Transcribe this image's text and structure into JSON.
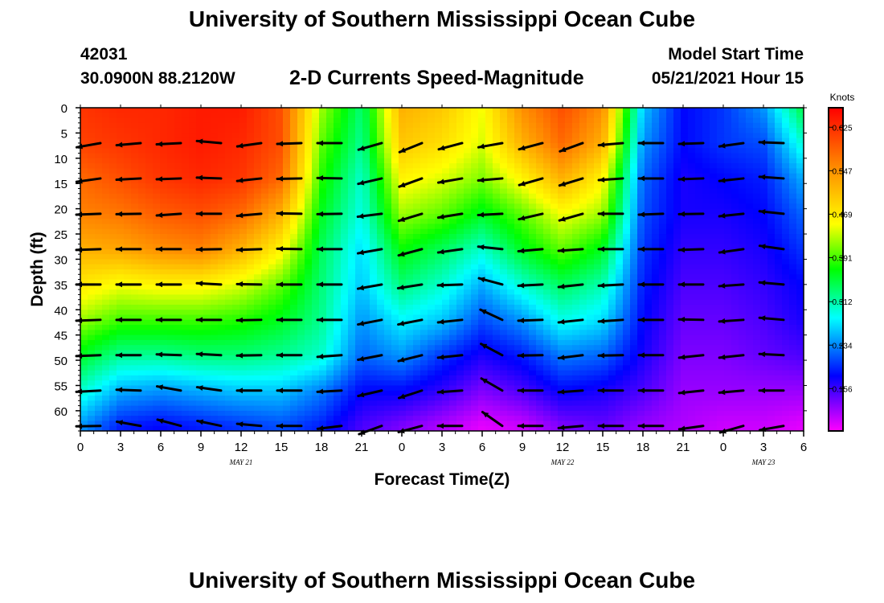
{
  "header": {
    "title": "University of Southern Mississippi Ocean Cube",
    "station_id": "42031",
    "station_coords": "30.0900N  88.2120W",
    "plot_title": "2-D Currents Speed-Magnitude",
    "model_label": "Model Start Time",
    "model_time": "05/21/2021 Hour 15"
  },
  "footer": {
    "title": "University of Southern Mississippi Ocean Cube"
  },
  "colors": {
    "magenta": "#ff00ff",
    "blue": "#0000ff",
    "cyan": "#00ffff",
    "green": "#00ff00",
    "yellow": "#ffff00",
    "orange": "#ff8800",
    "red": "#ff0000"
  },
  "chart_data": {
    "type": "heatmap",
    "title": "2-D Currents Speed-Magnitude",
    "xlabel": "Forecast Time(Z)",
    "ylabel": "Depth (ft)",
    "xlim": [
      0,
      54
    ],
    "ylim": [
      64,
      0
    ],
    "x_ticks": [
      0,
      3,
      6,
      9,
      12,
      15,
      18,
      21,
      24,
      27,
      30,
      33,
      36,
      39,
      42,
      45,
      48,
      51,
      54
    ],
    "x_tick_labels": [
      "0",
      "3",
      "6",
      "9",
      "12",
      "15",
      "18",
      "21",
      "0",
      "3",
      "6",
      "9",
      "12",
      "15",
      "18",
      "21",
      "0",
      "3",
      "6"
    ],
    "y_ticks": [
      0,
      5,
      10,
      15,
      20,
      25,
      30,
      35,
      40,
      45,
      50,
      55,
      60
    ],
    "y_tick_labels": [
      "0",
      "5",
      "10",
      "15",
      "20",
      "25",
      "30",
      "35",
      "40",
      "45",
      "50",
      "55",
      "60"
    ],
    "date_labels": [
      {
        "x": 12,
        "label": "MAY 21"
      },
      {
        "x": 36,
        "label": "MAY 22"
      },
      {
        "x": 51,
        "label": "MAY 23"
      }
    ],
    "colorbar": {
      "units": "Knots",
      "range": [
        0.08,
        0.66
      ],
      "ticks": [
        0.156,
        0.234,
        0.312,
        0.391,
        0.469,
        0.547,
        0.625
      ],
      "tick_labels": [
        "0.156",
        "0.234",
        "0.312",
        "0.391",
        "0.469",
        "0.547",
        "0.625"
      ]
    },
    "speed_grid": {
      "x": [
        0,
        3,
        6,
        9,
        12,
        15,
        18,
        21,
        24,
        27,
        30,
        33,
        36,
        39,
        42,
        45,
        48,
        51,
        54
      ],
      "depth": [
        0,
        7,
        14,
        21,
        28,
        35,
        42,
        49,
        56,
        63
      ],
      "values": [
        [
          0.62,
          0.63,
          0.63,
          0.64,
          0.64,
          0.6,
          0.42,
          0.33,
          0.52,
          0.5,
          0.45,
          0.55,
          0.6,
          0.55,
          0.26,
          0.18,
          0.2,
          0.24,
          0.35
        ],
        [
          0.61,
          0.62,
          0.63,
          0.64,
          0.63,
          0.6,
          0.4,
          0.32,
          0.5,
          0.48,
          0.44,
          0.52,
          0.58,
          0.52,
          0.24,
          0.18,
          0.2,
          0.21,
          0.3
        ],
        [
          0.58,
          0.6,
          0.62,
          0.63,
          0.62,
          0.58,
          0.38,
          0.3,
          0.46,
          0.44,
          0.41,
          0.46,
          0.52,
          0.46,
          0.22,
          0.17,
          0.18,
          0.19,
          0.25
        ],
        [
          0.56,
          0.57,
          0.59,
          0.6,
          0.58,
          0.52,
          0.36,
          0.29,
          0.42,
          0.4,
          0.36,
          0.4,
          0.45,
          0.42,
          0.21,
          0.17,
          0.17,
          0.18,
          0.22
        ],
        [
          0.52,
          0.53,
          0.55,
          0.56,
          0.52,
          0.46,
          0.34,
          0.27,
          0.37,
          0.34,
          0.3,
          0.36,
          0.4,
          0.36,
          0.2,
          0.16,
          0.16,
          0.17,
          0.2
        ],
        [
          0.47,
          0.45,
          0.46,
          0.46,
          0.44,
          0.4,
          0.33,
          0.26,
          0.33,
          0.3,
          0.25,
          0.3,
          0.34,
          0.31,
          0.19,
          0.15,
          0.15,
          0.16,
          0.18
        ],
        [
          0.42,
          0.39,
          0.39,
          0.39,
          0.38,
          0.36,
          0.32,
          0.24,
          0.28,
          0.26,
          0.21,
          0.24,
          0.29,
          0.27,
          0.18,
          0.14,
          0.14,
          0.15,
          0.17
        ],
        [
          0.36,
          0.32,
          0.32,
          0.33,
          0.33,
          0.32,
          0.3,
          0.22,
          0.24,
          0.2,
          0.17,
          0.19,
          0.23,
          0.22,
          0.17,
          0.13,
          0.13,
          0.14,
          0.15
        ],
        [
          0.3,
          0.25,
          0.24,
          0.25,
          0.26,
          0.26,
          0.23,
          0.18,
          0.18,
          0.16,
          0.13,
          0.15,
          0.18,
          0.17,
          0.15,
          0.12,
          0.12,
          0.12,
          0.12
        ],
        [
          0.24,
          0.19,
          0.18,
          0.19,
          0.2,
          0.21,
          0.19,
          0.15,
          0.13,
          0.11,
          0.09,
          0.1,
          0.13,
          0.14,
          0.12,
          0.11,
          0.1,
          0.1,
          0.09
        ]
      ]
    },
    "vectors": {
      "x": [
        1.5,
        4.5,
        7.5,
        10.5,
        13.5,
        16.5,
        19.5,
        22.5,
        25.5,
        28.5,
        31.5,
        34.5,
        37.5,
        40.5,
        43.5,
        46.5,
        49.5,
        52.5
      ],
      "depth": [
        7,
        14,
        21,
        28,
        35,
        42,
        49,
        56,
        63
      ],
      "direction_deg": [
        [
          190,
          185,
          183,
          175,
          188,
          182,
          180,
          196,
          202,
          195,
          190,
          195,
          200,
          185,
          180,
          182,
          188,
          178
        ],
        [
          188,
          183,
          182,
          178,
          186,
          181,
          179,
          193,
          200,
          190,
          185,
          196,
          197,
          184,
          180,
          182,
          186,
          176
        ],
        [
          182,
          181,
          184,
          180,
          185,
          179,
          181,
          187,
          197,
          189,
          183,
          193,
          196,
          180,
          182,
          181,
          186,
          174
        ],
        [
          182,
          180,
          180,
          181,
          182,
          179,
          180,
          190,
          195,
          188,
          174,
          185,
          184,
          180,
          180,
          182,
          188,
          172
        ],
        [
          180,
          180,
          180,
          177,
          179,
          180,
          180,
          190,
          189,
          182,
          165,
          183,
          186,
          183,
          180,
          180,
          184,
          175
        ],
        [
          182,
          180,
          180,
          180,
          181,
          180,
          180,
          191,
          191,
          186,
          155,
          182,
          186,
          184,
          180,
          179,
          184,
          175
        ],
        [
          182,
          180,
          178,
          177,
          181,
          180,
          184,
          191,
          194,
          186,
          152,
          181,
          187,
          181,
          180,
          186,
          186,
          177
        ],
        [
          183,
          178,
          170,
          172,
          180,
          180,
          183,
          193,
          198,
          184,
          150,
          180,
          184,
          180,
          180,
          186,
          185,
          180
        ],
        [
          181,
          170,
          165,
          168,
          175,
          180,
          187,
          200,
          195,
          180,
          145,
          180,
          185,
          180,
          180,
          188,
          196,
          190
        ]
      ]
    }
  }
}
